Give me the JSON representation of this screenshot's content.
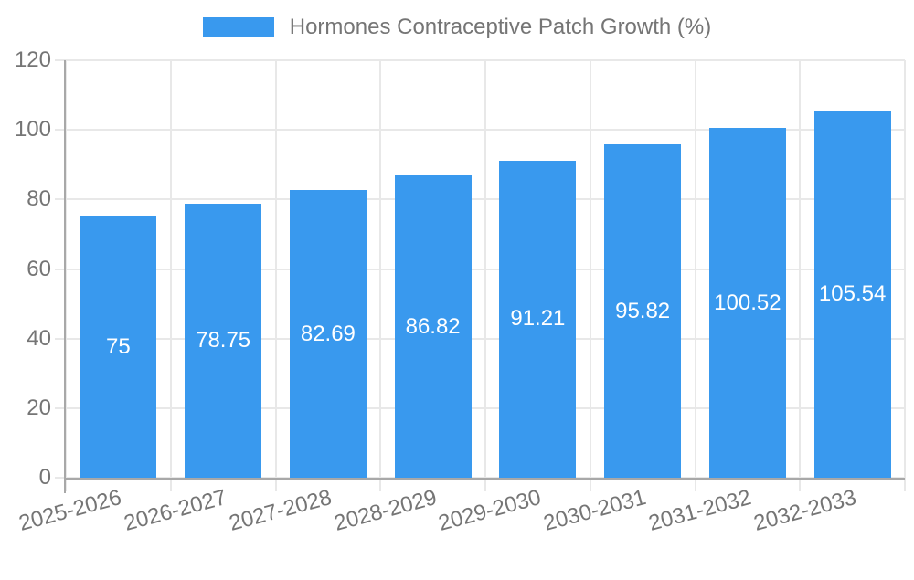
{
  "legend": {
    "label": "Hormones Contraceptive Patch Growth (%)"
  },
  "chart_data": {
    "type": "bar",
    "title": "Hormones Contraceptive Patch Growth (%)",
    "categories": [
      "2025-2026",
      "2026-2027",
      "2027-2028",
      "2028-2029",
      "2029-2030",
      "2030-2031",
      "2031-2032",
      "2032-2033"
    ],
    "values": [
      75,
      78.75,
      82.69,
      86.82,
      91.21,
      95.82,
      100.52,
      105.54
    ],
    "value_labels": [
      "75",
      "78.75",
      "82.69",
      "86.82",
      "91.21",
      "95.82",
      "100.52",
      "105.54"
    ],
    "xlabel": "",
    "ylabel": "",
    "ylim": [
      0,
      120
    ],
    "yticks": [
      0,
      20,
      40,
      60,
      80,
      100,
      120
    ],
    "grid": true,
    "legend_position": "top-center",
    "bar_color": "#3999ee",
    "value_label_color": "#ffffff",
    "axis_text_color": "#757575",
    "grid_color": "#e8e8e8",
    "axis_line_color": "#a8a8a8"
  }
}
